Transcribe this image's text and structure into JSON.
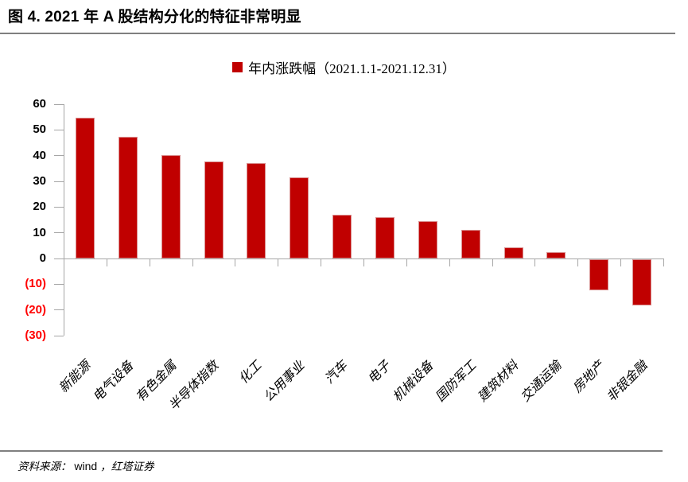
{
  "title": "图 4. 2021 年 A 股结构分化的特征非常明显",
  "legend": {
    "label": "年内涨跌幅（2021.1.1-2021.12.31）"
  },
  "footer": {
    "prefix": "资料来源：",
    "source": "wind",
    "suffix": "，红塔证券"
  },
  "colors": {
    "bar": "#c00000",
    "bar_border": "#d98f8f",
    "axis": "#a6a6a6",
    "rule": "#7f7f7f",
    "negative_label": "#ff0000",
    "text": "#000000"
  },
  "chart_data": {
    "type": "bar",
    "title": "年内涨跌幅（2021.1.1-2021.12.31）",
    "categories": [
      "新能源",
      "电气设备",
      "有色金属",
      "半导体指数",
      "化工",
      "公用事业",
      "汽车",
      "电子",
      "机械设备",
      "国防军工",
      "建筑材料",
      "交通运输",
      "房地产",
      "非银金融"
    ],
    "values": [
      54.6,
      47.4,
      40.2,
      37.6,
      37.1,
      31.4,
      17.0,
      16.0,
      14.6,
      11.1,
      4.2,
      2.4,
      -12.2,
      -17.8
    ],
    "xlabel": "",
    "ylabel": "",
    "ylim": [
      -30,
      60
    ],
    "yticks": [
      {
        "value": 60,
        "label": "60"
      },
      {
        "value": 50,
        "label": "50"
      },
      {
        "value": 40,
        "label": "40"
      },
      {
        "value": 30,
        "label": "30"
      },
      {
        "value": 20,
        "label": "20"
      },
      {
        "value": 10,
        "label": "10"
      },
      {
        "value": 0,
        "label": "0"
      },
      {
        "value": -10,
        "label": "(10)"
      },
      {
        "value": -20,
        "label": "(20)"
      },
      {
        "value": -30,
        "label": "(30)"
      }
    ],
    "grid": false,
    "legend_position": "top-center",
    "bar_color": "#c00000"
  }
}
